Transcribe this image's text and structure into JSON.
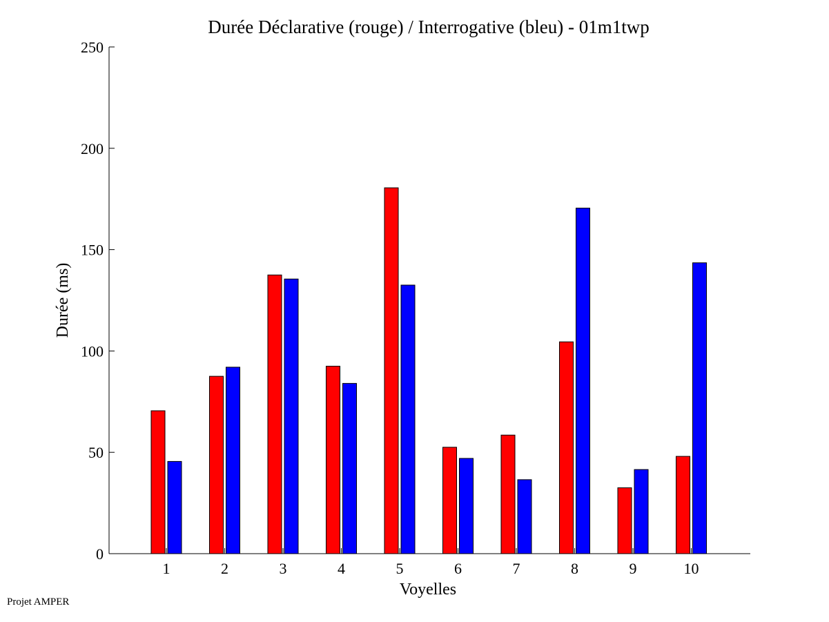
{
  "footer": {
    "credit": "Projet AMPER"
  },
  "chart_data": {
    "type": "bar",
    "title": "Durée Déclarative (rouge) / Interrogative (bleu) - 01m1twp",
    "xlabel": "Voyelles",
    "ylabel": "Durée (ms)",
    "categories": [
      "1",
      "2",
      "3",
      "4",
      "5",
      "6",
      "7",
      "8",
      "9",
      "10"
    ],
    "ylim": [
      0,
      250
    ],
    "yticks": [
      "0",
      "50",
      "100",
      "150",
      "200",
      "250"
    ],
    "grid": false,
    "legend": "none",
    "series": [
      {
        "color": "#ff0000",
        "values": [
          70.5,
          87.5,
          137.5,
          92.5,
          180.5,
          52.5,
          58.5,
          104.5,
          32.5,
          48
        ]
      },
      {
        "color": "#0000ff",
        "values": [
          45.5,
          92,
          135.5,
          84,
          132.5,
          47,
          36.5,
          170.5,
          41.5,
          143.5
        ]
      }
    ]
  }
}
